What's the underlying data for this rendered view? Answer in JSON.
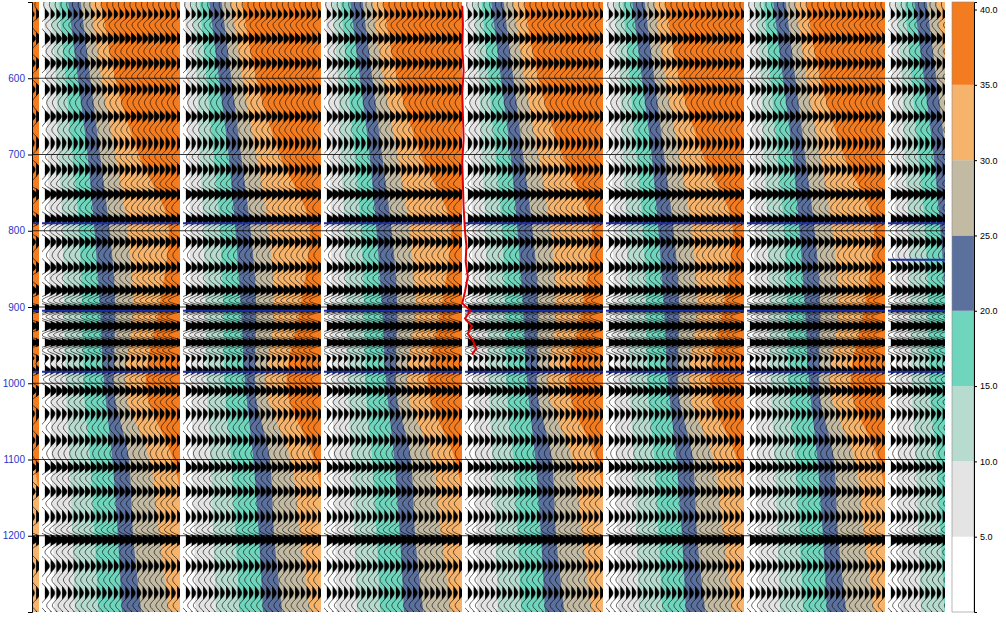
{
  "chart_data": {
    "type": "seismic_gathers",
    "ylim": [
      500,
      1300
    ],
    "yticks": [
      600,
      700,
      800,
      900,
      1000,
      1100,
      1200
    ],
    "grid": true,
    "angle_field": {
      "times": [
        500,
        600,
        700,
        800,
        900,
        1000,
        1100,
        1200,
        1300
      ],
      "contours": [
        {
          "angle": 5,
          "offsets": [
            0.01,
            0.03,
            0.04,
            0.05,
            0.05,
            0.06,
            0.07,
            0.08,
            0.09
          ]
        },
        {
          "angle": 10,
          "offsets": [
            0.06,
            0.1,
            0.12,
            0.15,
            0.16,
            0.17,
            0.2,
            0.22,
            0.24
          ]
        },
        {
          "angle": 15,
          "offsets": [
            0.12,
            0.17,
            0.22,
            0.27,
            0.29,
            0.3,
            0.35,
            0.38,
            0.41
          ]
        },
        {
          "angle": 20,
          "offsets": [
            0.19,
            0.26,
            0.33,
            0.38,
            0.42,
            0.45,
            0.51,
            0.55,
            0.58
          ]
        },
        {
          "angle": 25,
          "offsets": [
            0.28,
            0.35,
            0.42,
            0.49,
            0.53,
            0.52,
            0.63,
            0.66,
            0.72
          ]
        },
        {
          "angle": 30,
          "offsets": [
            0.35,
            0.43,
            0.53,
            0.62,
            0.66,
            0.6,
            0.78,
            0.85,
            0.92
          ]
        },
        {
          "angle": 35,
          "offsets": [
            0.43,
            0.53,
            0.7,
            0.92,
            0.85,
            0.75,
            0.95,
            1.05,
            1.12
          ]
        }
      ]
    },
    "events": {
      "times": [
        515,
        530,
        548,
        565,
        580,
        598,
        615,
        632,
        650,
        668,
        685,
        703,
        720,
        738,
        752,
        770,
        785,
        800,
        815,
        832,
        848,
        862,
        878,
        893,
        902,
        912,
        925,
        938,
        947,
        955,
        968,
        982,
        995,
        1010,
        1025,
        1040,
        1058,
        1075,
        1092,
        1110,
        1125,
        1142,
        1158,
        1175,
        1192,
        1205,
        1222,
        1240,
        1258,
        1275,
        1292
      ],
      "amplitudes": [
        0.4,
        -0.5,
        0.6,
        -0.4,
        0.5,
        -0.6,
        0.5,
        -0.4,
        0.6,
        -0.5,
        0.4,
        -0.6,
        0.5,
        -0.5,
        0.7,
        -0.5,
        0.6,
        -0.6,
        0.5,
        -0.4,
        0.5,
        -0.5,
        0.6,
        -0.7,
        1.0,
        -0.9,
        0.6,
        -0.7,
        1.0,
        -0.8,
        0.5,
        0.7,
        -0.6,
        0.5,
        -0.5,
        0.4,
        -0.5,
        0.5,
        -0.4,
        0.6,
        -0.5,
        0.5,
        -0.5,
        0.4,
        -0.6,
        0.8,
        -0.6,
        0.5,
        -0.5,
        0.4,
        -0.5
      ]
    },
    "horizons": [
      790,
      905,
      985
    ],
    "last_panel_horizons": [
      838
    ],
    "well_log": {
      "color": "#e00000",
      "times": [
        505,
        530,
        560,
        590,
        620,
        650,
        680,
        710,
        740,
        770,
        800,
        820,
        840,
        860,
        880,
        895,
        905,
        915,
        925,
        935,
        945,
        955,
        962
      ],
      "offsets": [
        -0.02,
        -0.015,
        -0.02,
        -0.01,
        -0.02,
        -0.015,
        -0.01,
        -0.02,
        -0.015,
        -0.01,
        0.0,
        0.01,
        0.005,
        0.02,
        0.0,
        -0.02,
        0.04,
        0.0,
        0.05,
        0.02,
        0.06,
        0.08,
        0.05
      ]
    },
    "colorbar": {
      "range": [
        0,
        40.5
      ],
      "bins": [
        0,
        5,
        10,
        15,
        20,
        25,
        30,
        35,
        40.5
      ],
      "colors": [
        "#ffffff",
        "#e4e4e4",
        "#b7dccf",
        "#6fd5bd",
        "#5b709d",
        "#c3baa3",
        "#f6b36c",
        "#f47c20"
      ],
      "ticks": [
        {
          "value": 5,
          "label": "5.0"
        },
        {
          "value": 10,
          "label": "10.0"
        },
        {
          "value": 15,
          "label": "15.0"
        },
        {
          "value": 20,
          "label": "20.0"
        },
        {
          "value": 25,
          "label": "25.0"
        },
        {
          "value": 30,
          "label": "30.0"
        },
        {
          "value": 35,
          "label": "35.0"
        },
        {
          "value": 40,
          "label": "40.0"
        }
      ]
    }
  }
}
